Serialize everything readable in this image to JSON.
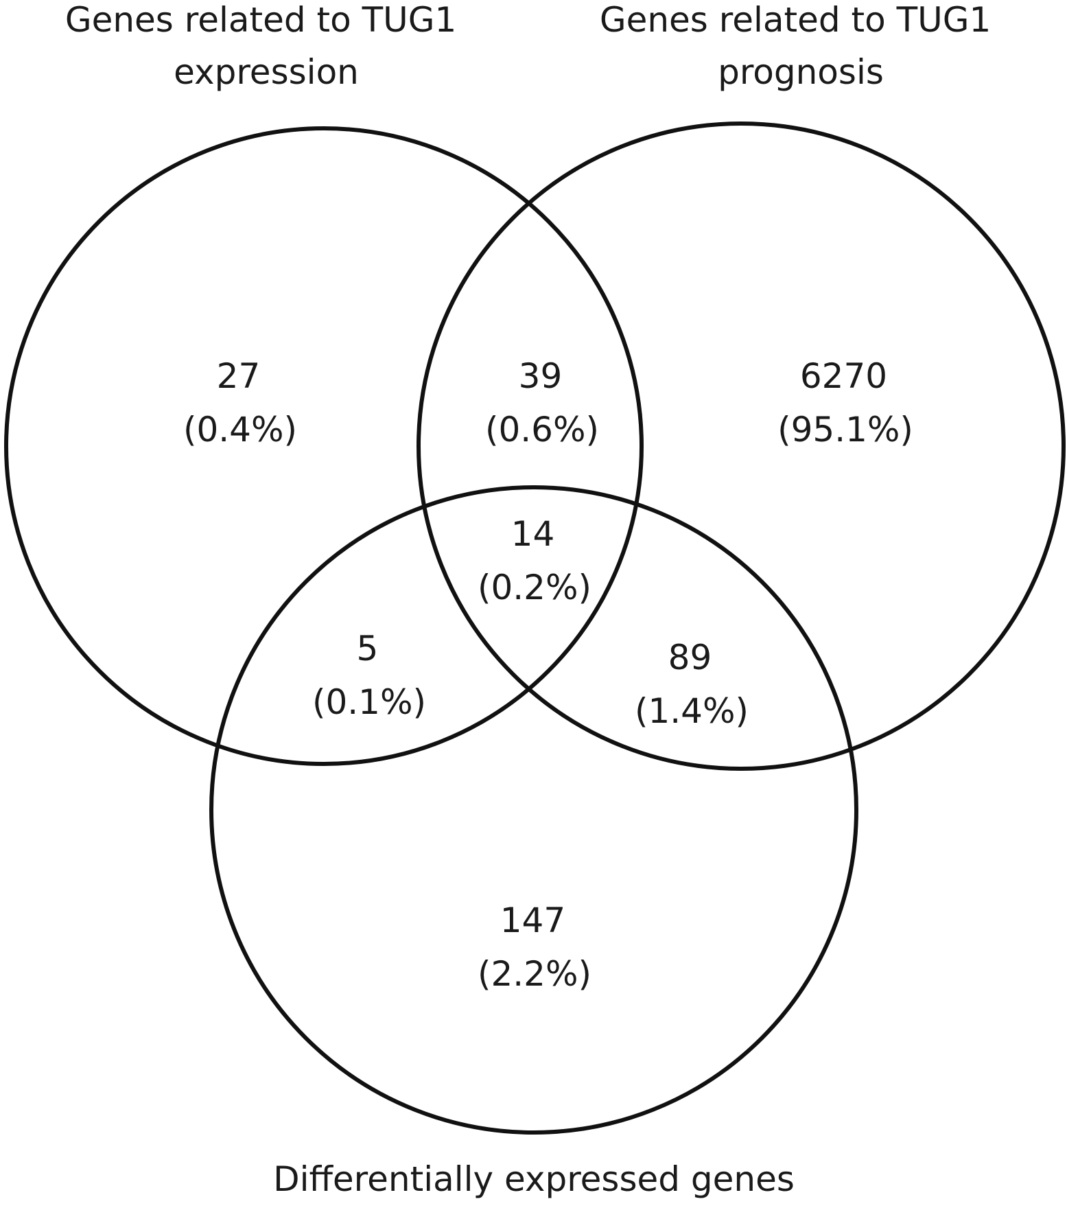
{
  "diagram": {
    "type": "venn-3",
    "sets": [
      {
        "id": "A",
        "title_lines": [
          "Genes related to TUG1",
          "expression"
        ]
      },
      {
        "id": "B",
        "title_lines": [
          "Genes related to TUG1",
          "prognosis"
        ]
      },
      {
        "id": "C",
        "title_lines": [
          "Differentially expressed genes"
        ]
      }
    ],
    "regions": [
      {
        "id": "A_only",
        "sets": [
          "A"
        ],
        "count": "27",
        "percent": "(0.4%)"
      },
      {
        "id": "AB_only",
        "sets": [
          "A",
          "B"
        ],
        "count": "39",
        "percent": "(0.6%)"
      },
      {
        "id": "B_only",
        "sets": [
          "B"
        ],
        "count": "6270",
        "percent": "(95.1%)"
      },
      {
        "id": "ABC",
        "sets": [
          "A",
          "B",
          "C"
        ],
        "count": "14",
        "percent": "(0.2%)"
      },
      {
        "id": "AC_only",
        "sets": [
          "A",
          "C"
        ],
        "count": "5",
        "percent": "(0.1%)"
      },
      {
        "id": "BC_only",
        "sets": [
          "B",
          "C"
        ],
        "count": "89",
        "percent": "(1.4%)"
      },
      {
        "id": "C_only",
        "sets": [
          "C"
        ],
        "count": "147",
        "percent": "(2.2%)"
      }
    ],
    "colors": {
      "outline": "#111111",
      "text": "#1a1a1a",
      "background": "#ffffff"
    }
  }
}
